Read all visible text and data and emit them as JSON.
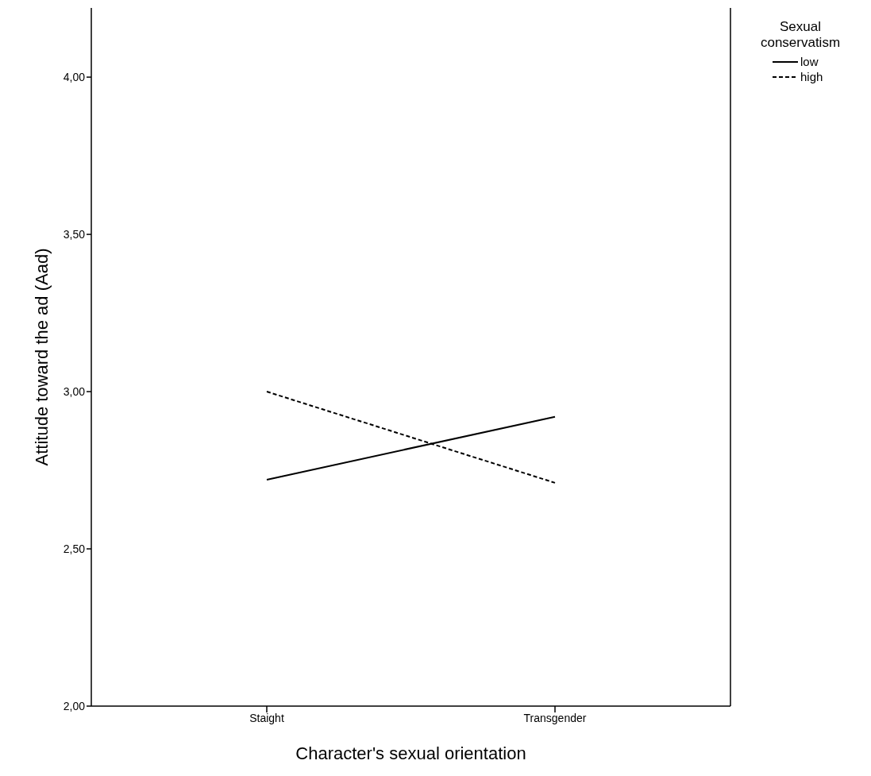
{
  "chart_data": {
    "type": "line",
    "xlabel": "Character's sexual orientation",
    "ylabel": "Attitude toward the ad (Aad)",
    "legend_title": "Sexual conservatism",
    "categories": [
      "Staight",
      "Transgender"
    ],
    "series": [
      {
        "name": "low",
        "color": "#000000",
        "values": [
          2.72,
          2.92
        ],
        "line_style": "solid"
      },
      {
        "name": "high",
        "color": "#000000",
        "values": [
          3.0,
          2.71
        ],
        "line_style": "dashed"
      }
    ],
    "ylim": [
      2,
      4.22
    ],
    "yticks": [
      {
        "value": 2,
        "label": "2,00"
      },
      {
        "value": 2.5,
        "label": "2,50"
      },
      {
        "value": 3,
        "label": "3,00"
      },
      {
        "value": 3.5,
        "label": "3,50"
      },
      {
        "value": 4,
        "label": "4,00"
      }
    ],
    "grid": false,
    "legend": "top right",
    "marker": "none"
  }
}
